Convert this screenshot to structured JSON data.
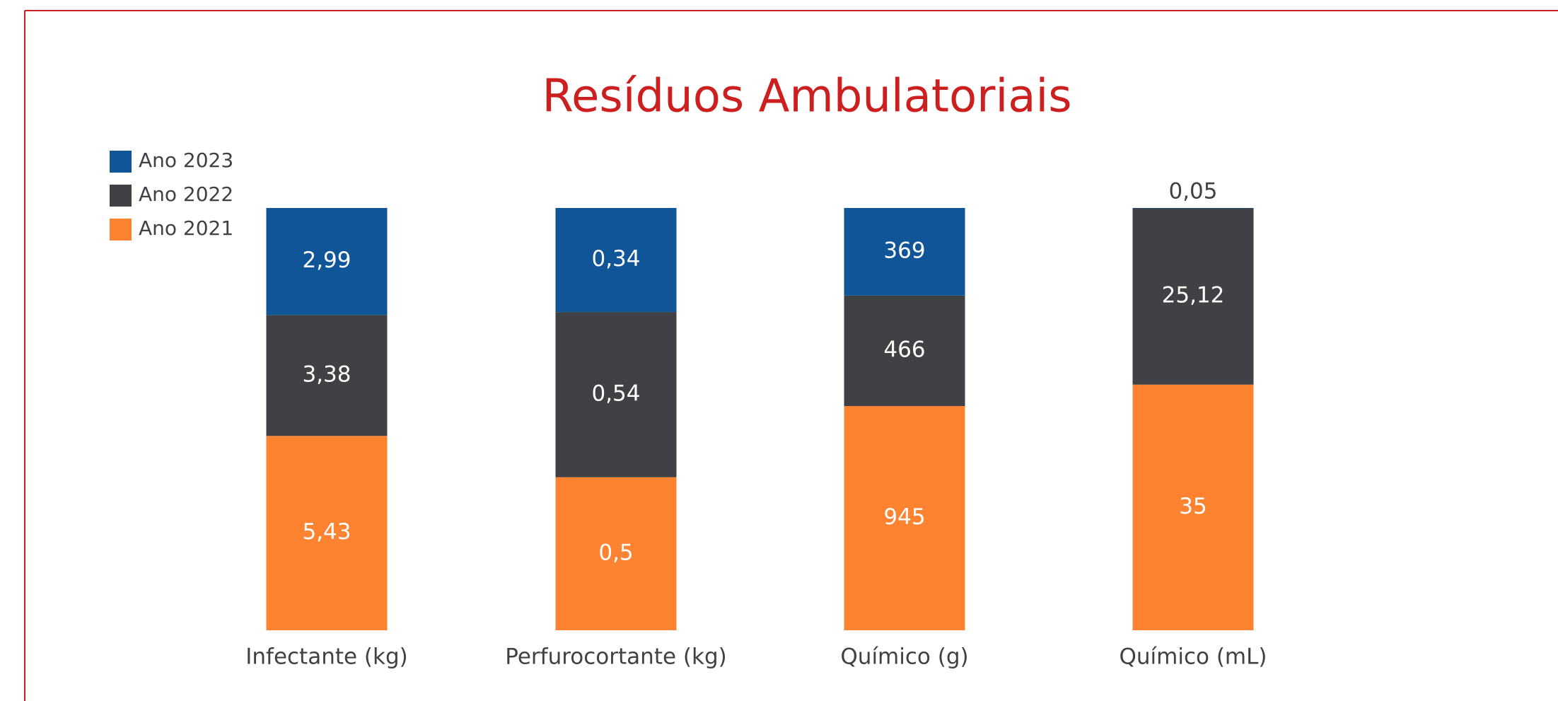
{
  "chart_data": {
    "type": "bar",
    "stacked": "percent",
    "title": "Resíduos Ambulatoriais",
    "categories": [
      "Infectante (kg)",
      "Perfurocortante (kg)",
      "Químico (g)",
      "Químico (mL)"
    ],
    "series": [
      {
        "name": "Ano 2021",
        "color": "#fe8330",
        "values": [
          5.43,
          0.5,
          945,
          35
        ],
        "value_labels": [
          "5,43",
          "0,5",
          "945",
          "35"
        ]
      },
      {
        "name": "Ano 2022",
        "color": "#404145",
        "values": [
          3.38,
          0.54,
          466,
          25.12
        ],
        "value_labels": [
          "3,38",
          "0,54",
          "466",
          "25,12"
        ]
      },
      {
        "name": "Ano 2023",
        "color": "#0f5597",
        "values": [
          2.99,
          0.34,
          369,
          0.05
        ],
        "value_labels": [
          "2,99",
          "0,34",
          "369",
          "0,05"
        ]
      }
    ],
    "legend": "top-left"
  }
}
